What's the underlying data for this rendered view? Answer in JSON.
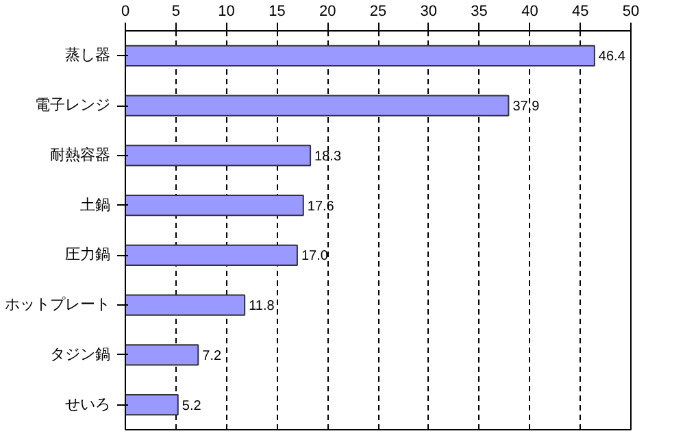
{
  "chart_data": {
    "type": "bar",
    "orientation": "horizontal",
    "categories": [
      "蒸し器",
      "電子レンジ",
      "耐熱容器",
      "土鍋",
      "圧力鍋",
      "ホットプレート",
      "タジン鍋",
      "せいろ"
    ],
    "values": [
      46.4,
      37.9,
      18.3,
      17.6,
      17.0,
      11.8,
      7.2,
      5.2
    ],
    "value_labels": [
      "46.4",
      "37.9",
      "18.3",
      "17.6",
      "17.0",
      "11.8",
      "7.2",
      "5.2"
    ],
    "color": "#9999ff",
    "xlim": [
      0,
      50
    ],
    "xticks": [
      0,
      5,
      10,
      15,
      20,
      25,
      30,
      35,
      40,
      45,
      50
    ],
    "grid": "x"
  }
}
